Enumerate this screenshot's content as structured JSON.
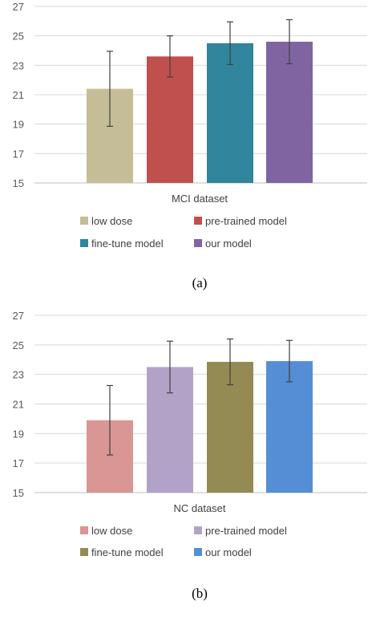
{
  "chart_data": [
    {
      "type": "bar",
      "xlabel": "MCI dataset",
      "caption": "(a)",
      "ylim": [
        15,
        27
      ],
      "yticks": [
        "15",
        "17",
        "19",
        "21",
        "23",
        "25",
        "27"
      ],
      "grid": true,
      "legend_position": "bottom",
      "series": [
        {
          "name": "low dose",
          "value": 21.4,
          "error": 2.55,
          "color": "#C4BD97"
        },
        {
          "name": "pre-trained model",
          "value": 23.6,
          "error": 1.4,
          "color": "#C0504D"
        },
        {
          "name": "fine-tune model",
          "value": 24.5,
          "error": 1.45,
          "color": "#31859C"
        },
        {
          "name": "our model",
          "value": 24.6,
          "error": 1.5,
          "color": "#8064A2"
        }
      ]
    },
    {
      "type": "bar",
      "xlabel": "NC dataset",
      "caption": "(b)",
      "ylim": [
        15,
        27
      ],
      "yticks": [
        "15",
        "17",
        "19",
        "21",
        "23",
        "25",
        "27"
      ],
      "grid": true,
      "legend_position": "bottom",
      "series": [
        {
          "name": "low dose",
          "value": 19.9,
          "error": 2.35,
          "color": "#D99694"
        },
        {
          "name": "pre-trained model",
          "value": 23.5,
          "error": 1.75,
          "color": "#B3A2C7"
        },
        {
          "name": "fine-tune model",
          "value": 23.85,
          "error": 1.55,
          "color": "#948A54"
        },
        {
          "name": "our model",
          "value": 23.9,
          "error": 1.4,
          "color": "#558ED5"
        }
      ]
    }
  ]
}
